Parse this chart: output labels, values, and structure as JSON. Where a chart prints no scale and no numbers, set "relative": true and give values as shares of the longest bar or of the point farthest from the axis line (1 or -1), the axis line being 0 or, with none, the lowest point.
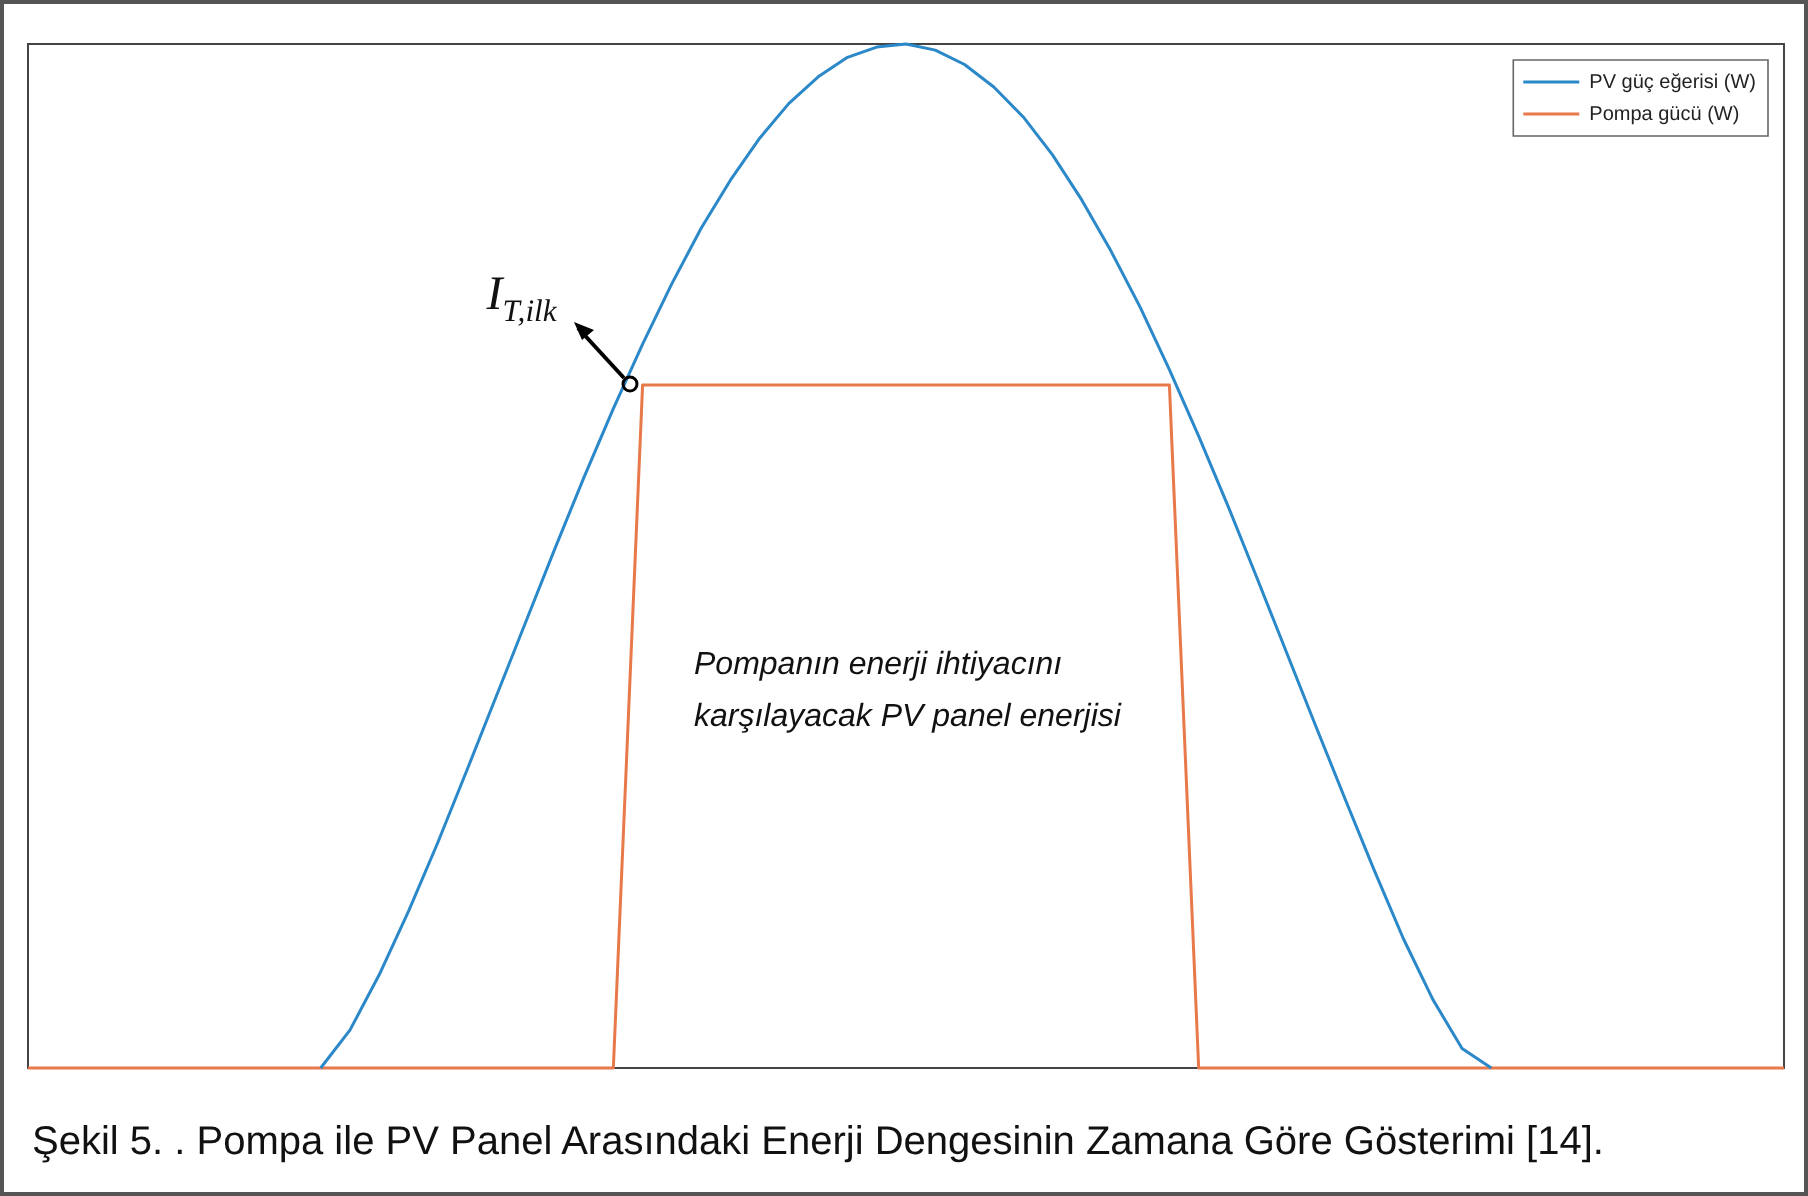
{
  "chart_data": {
    "type": "line",
    "relative": true,
    "categories": [
      null,
      null,
      null,
      null,
      null,
      null,
      null,
      null,
      null,
      null,
      null,
      null,
      null,
      null,
      null,
      null,
      null,
      null,
      null,
      null,
      null,
      null,
      null,
      null,
      null,
      null,
      null,
      null,
      null,
      null,
      null,
      null,
      null,
      null,
      null,
      null,
      null,
      null,
      null,
      null,
      null,
      null,
      null,
      null,
      null,
      null,
      null,
      null,
      null,
      null,
      null,
      null,
      null,
      null,
      null,
      null,
      null,
      null,
      null,
      null,
      null
    ],
    "series": [
      {
        "name": "PV güç eğerisi (W)",
        "color": "#2b88c9",
        "values": [
          null,
          null,
          null,
          null,
          null,
          null,
          null,
          null,
          null,
          null,
          0,
          0.037,
          0.091,
          0.153,
          0.22,
          0.291,
          0.363,
          0.435,
          0.507,
          0.577,
          0.644,
          0.707,
          0.766,
          0.82,
          0.867,
          0.908,
          0.942,
          0.968,
          0.987,
          0.997,
          1,
          0.994,
          0.98,
          0.958,
          0.929,
          0.892,
          0.848,
          0.798,
          0.743,
          0.682,
          0.617,
          0.549,
          0.478,
          0.406,
          0.334,
          0.263,
          0.193,
          0.126,
          0.067,
          0.019,
          0,
          null,
          null,
          null,
          null,
          null,
          null,
          null,
          null,
          null,
          null
        ]
      },
      {
        "name": "Pompa gücü (W)",
        "color": "#e8794a",
        "values": [
          0,
          0,
          0,
          0,
          0,
          0,
          0,
          0,
          0,
          0,
          0,
          0,
          0,
          0,
          0,
          0,
          0,
          0,
          0,
          0,
          0,
          0.667,
          0.667,
          0.667,
          0.667,
          0.667,
          0.667,
          0.667,
          0.667,
          0.667,
          0.667,
          0.667,
          0.667,
          0.667,
          0.667,
          0.667,
          0.667,
          0.667,
          0.667,
          0.667,
          0,
          0,
          0,
          0,
          0,
          0,
          0,
          0,
          0,
          0,
          0,
          0,
          0,
          0,
          0,
          0,
          0,
          0,
          0,
          0,
          0
        ]
      }
    ],
    "legend": "top right",
    "grid": false,
    "marker": "none",
    "line_style": "solid",
    "annotations": [
      "I$_{T,ilk}$",
      "Pompanın enerji ihtiyacını karşılayacak PV panel enerjisi",
      "Şekil 5. . Pompa ile PV Panel Arasındaki Enerji Dengesinin Zamana Göre Gösterimi [14]."
    ]
  }
}
